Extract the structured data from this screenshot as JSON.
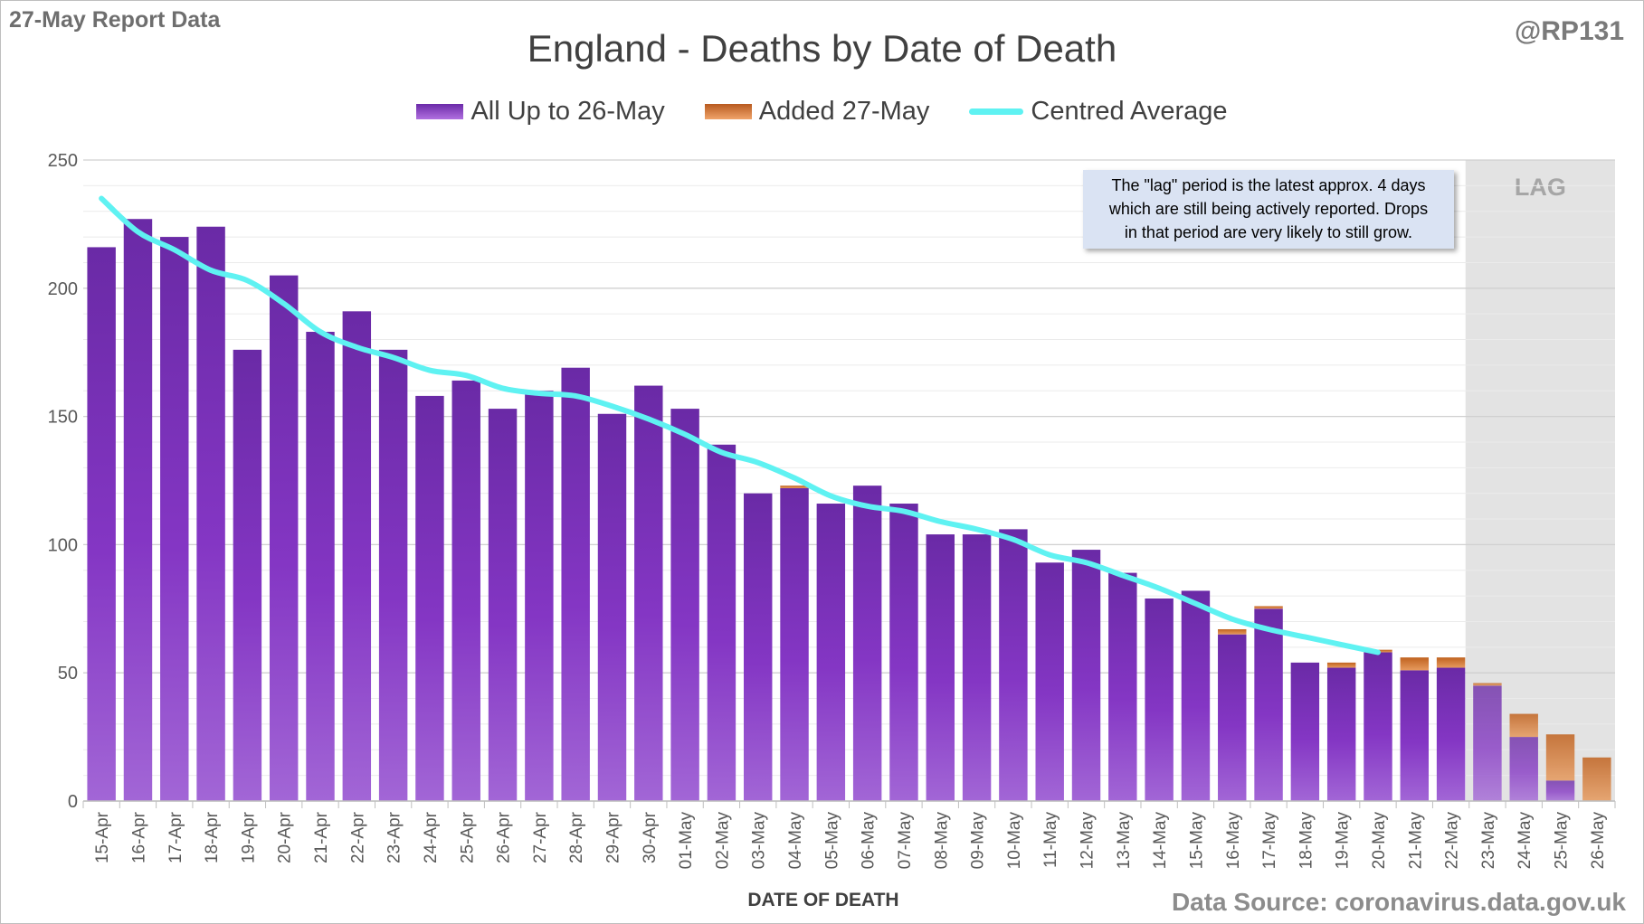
{
  "header": {
    "report_label": "27-May Report Data",
    "handle": "@RP131"
  },
  "footer": {
    "source": "Data Source: coronavirus.data.gov.uk"
  },
  "annotation": {
    "note_lines": [
      "The \"lag\" period is the latest approx. 4 days",
      "which are still being actively reported.  Drops",
      "in that period are very likely to still grow."
    ],
    "lag_label": "LAG"
  },
  "colors": {
    "series_main": "#7a32b8",
    "series_added": "#d4772f",
    "average_line": "#5ff2f2",
    "lag_shade": "#e3e3e3",
    "note_bg": "#dae3f3"
  },
  "chart_data": {
    "type": "bar",
    "stacked": true,
    "title": "England - Deaths by Date of Death",
    "xlabel": "DATE OF DEATH",
    "ylabel": "",
    "ylim": [
      0,
      250
    ],
    "yticks": [
      0,
      50,
      100,
      150,
      200,
      250
    ],
    "grid": true,
    "legend_position": "top",
    "categories": [
      "15-Apr",
      "16-Apr",
      "17-Apr",
      "18-Apr",
      "19-Apr",
      "20-Apr",
      "21-Apr",
      "22-Apr",
      "23-Apr",
      "24-Apr",
      "25-Apr",
      "26-Apr",
      "27-Apr",
      "28-Apr",
      "29-Apr",
      "30-Apr",
      "01-May",
      "02-May",
      "03-May",
      "04-May",
      "05-May",
      "06-May",
      "07-May",
      "08-May",
      "09-May",
      "10-May",
      "11-May",
      "12-May",
      "13-May",
      "14-May",
      "15-May",
      "16-May",
      "17-May",
      "18-May",
      "19-May",
      "20-May",
      "21-May",
      "22-May",
      "23-May",
      "24-May",
      "25-May",
      "26-May"
    ],
    "series": [
      {
        "name": "All Up to 26-May",
        "values": [
          216,
          227,
          220,
          224,
          176,
          205,
          183,
          191,
          176,
          158,
          164,
          153,
          160,
          169,
          151,
          162,
          153,
          139,
          120,
          122,
          116,
          123,
          116,
          104,
          104,
          106,
          93,
          98,
          89,
          79,
          82,
          65,
          75,
          54,
          52,
          58,
          51,
          52,
          45,
          25,
          8,
          0
        ]
      },
      {
        "name": "Added 27-May",
        "values": [
          0,
          0,
          0,
          0,
          0,
          0,
          0,
          0,
          0,
          0,
          0,
          0,
          0,
          0,
          0,
          0,
          0,
          0,
          0,
          1,
          0,
          0,
          0,
          0,
          0,
          0,
          0,
          0,
          0,
          0,
          0,
          2,
          1,
          0,
          2,
          1,
          5,
          4,
          1,
          9,
          18,
          17
        ]
      },
      {
        "name": "Centred Average",
        "type": "line",
        "values": [
          235,
          222,
          215,
          207,
          203,
          194,
          183,
          177,
          173,
          168,
          166,
          161,
          159,
          158,
          154,
          149,
          143,
          136,
          132,
          126,
          119,
          115,
          113,
          109,
          106,
          102,
          96,
          93,
          88,
          83,
          77,
          71,
          67,
          64,
          61,
          58,
          null,
          null,
          null,
          null,
          null,
          null
        ]
      }
    ],
    "lag_period": [
      "23-May",
      "24-May",
      "25-May",
      "26-May"
    ]
  }
}
